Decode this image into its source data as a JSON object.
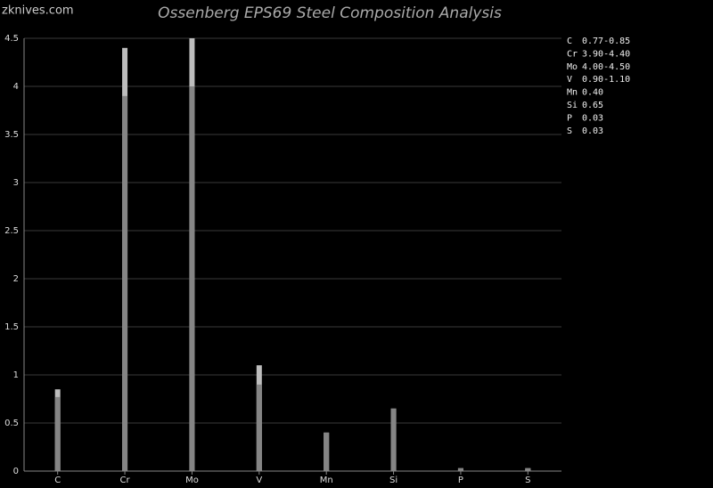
{
  "watermark": "zknives.com",
  "chart_data": {
    "type": "range-bar",
    "title": "Ossenberg EPS69 Steel Composition Analysis",
    "categories": [
      "C",
      "Cr",
      "Mo",
      "V",
      "Mn",
      "Si",
      "P",
      "S"
    ],
    "low": [
      0.77,
      3.9,
      4.0,
      0.9,
      0.4,
      0.65,
      0.03,
      0.03
    ],
    "high": [
      0.85,
      4.4,
      4.5,
      1.1,
      0.4,
      0.65,
      0.03,
      0.03
    ],
    "value_labels": [
      "0.77-0.85",
      "3.90-4.40",
      "4.00-4.50",
      "0.90-1.10",
      "0.40",
      "0.65",
      "0.03",
      "0.03"
    ],
    "low_color": "#858585",
    "high_color": "#bdbdbd",
    "ylim": [
      0,
      4.5
    ],
    "yticks": [
      0,
      0.5,
      1,
      1.5,
      2,
      2.5,
      3,
      3.5,
      4,
      4.5
    ],
    "grid": true
  }
}
